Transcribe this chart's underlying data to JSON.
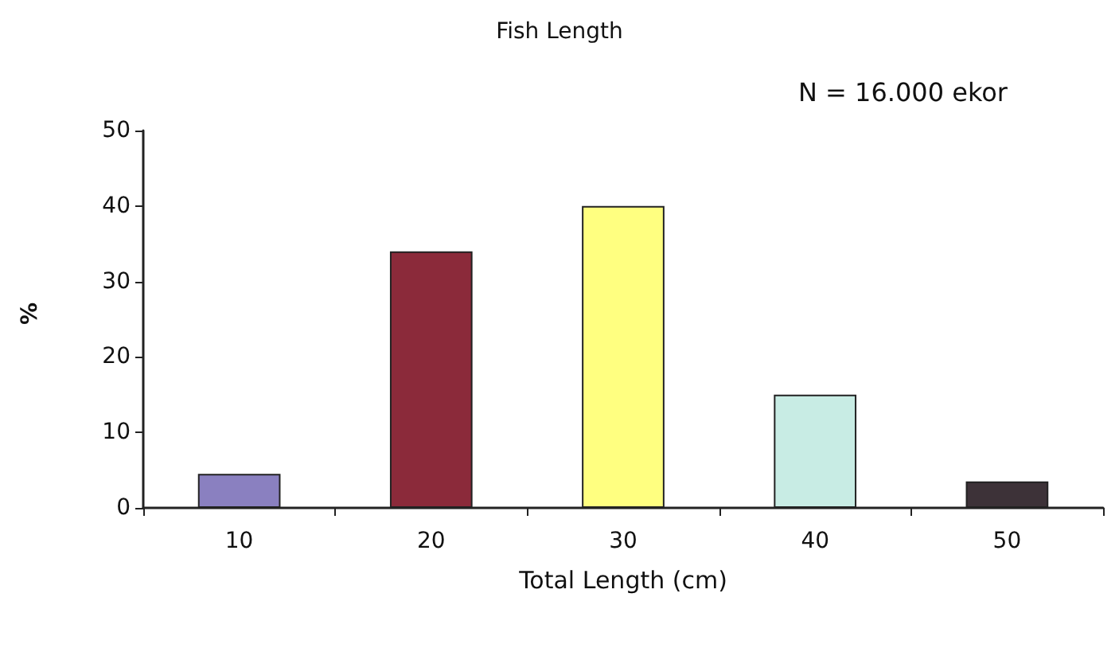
{
  "chart_data": {
    "type": "bar",
    "title": "Fish Length",
    "xlabel": "Total Length (cm)",
    "ylabel": "%",
    "categories": [
      "10",
      "20",
      "30",
      "40",
      "50"
    ],
    "values": [
      4.5,
      34,
      40,
      15,
      3.5
    ],
    "colors": [
      "#8a80c0",
      "#8b2a3a",
      "#ffff80",
      "#c8ece4",
      "#3d3238"
    ],
    "ylim": [
      0,
      50
    ],
    "yticks": [
      0,
      10,
      20,
      30,
      40,
      50
    ],
    "grid": false,
    "annotations": [
      "N = 16.000 ekor"
    ]
  }
}
